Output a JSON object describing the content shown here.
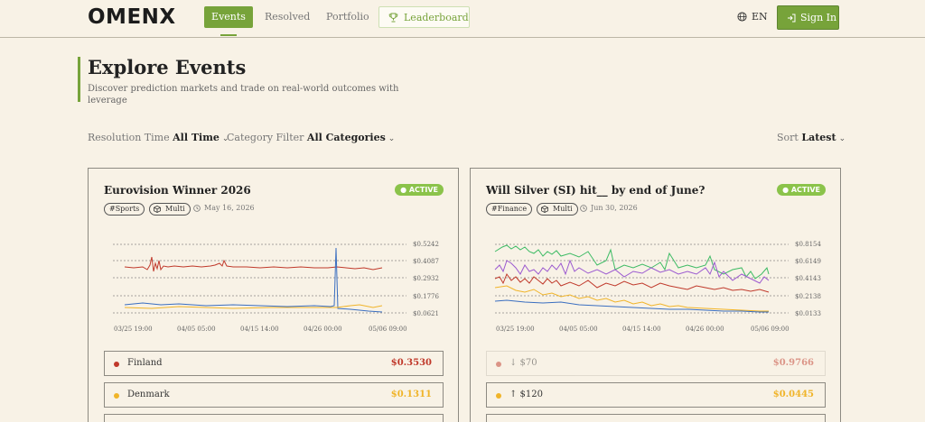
{
  "header": {
    "logo": "OMENX",
    "nav": {
      "events": "Events",
      "resolved": "Resolved",
      "portfolio": "Portfolio",
      "leaderboard": "Leaderboard"
    },
    "language": "EN",
    "sign_in": "Sign In"
  },
  "intro": {
    "title": "Explore Events",
    "subtitle": "Discover prediction markets and trade on real-world outcomes with leverage"
  },
  "filters": {
    "resolution_label": "Resolution Time",
    "resolution_value": "All Time",
    "category_label": "Category Filter",
    "category_value": "All Categories",
    "sort_label": "Sort",
    "sort_value": "Latest"
  },
  "cards": [
    {
      "title": "Eurovision Winner 2026",
      "status": "● ACTIVE",
      "tag": "#Sports",
      "type": "Multi",
      "date": "May 16, 2026",
      "y_ticks": [
        "$0.5242",
        "$0.4087",
        "$0.2932",
        "$0.1776",
        "$0.0621"
      ],
      "x_ticks": [
        "03/25 19:00",
        "04/05 05:00",
        "04/15 14:00",
        "04/26 00:00",
        "05/06 09:00"
      ],
      "outcomes": [
        {
          "name": "Finland",
          "price": "$0.3530",
          "color": "#c0392b"
        },
        {
          "name": "Denmark",
          "price": "$0.1311",
          "color": "#f0b429"
        }
      ]
    },
    {
      "title": "Will Silver (SI) hit__ by end of June?",
      "status": "● ACTIVE",
      "tag": "#Finance",
      "type": "Multi",
      "date": "Jun 30, 2026",
      "y_ticks": [
        "$0.8154",
        "$0.6149",
        "$0.4143",
        "$0.2138",
        "$0.0133"
      ],
      "x_ticks": [
        "03/25 19:00",
        "04/05 05:00",
        "04/15 14:00",
        "04/26 00:00",
        "05/06 09:00"
      ],
      "outcomes": [
        {
          "name": "↓ $70",
          "price": "$0.9766",
          "color": "#c0392b"
        },
        {
          "name": "↑ $120",
          "price": "$0.0445",
          "color": "#f0b429"
        }
      ]
    }
  ]
}
